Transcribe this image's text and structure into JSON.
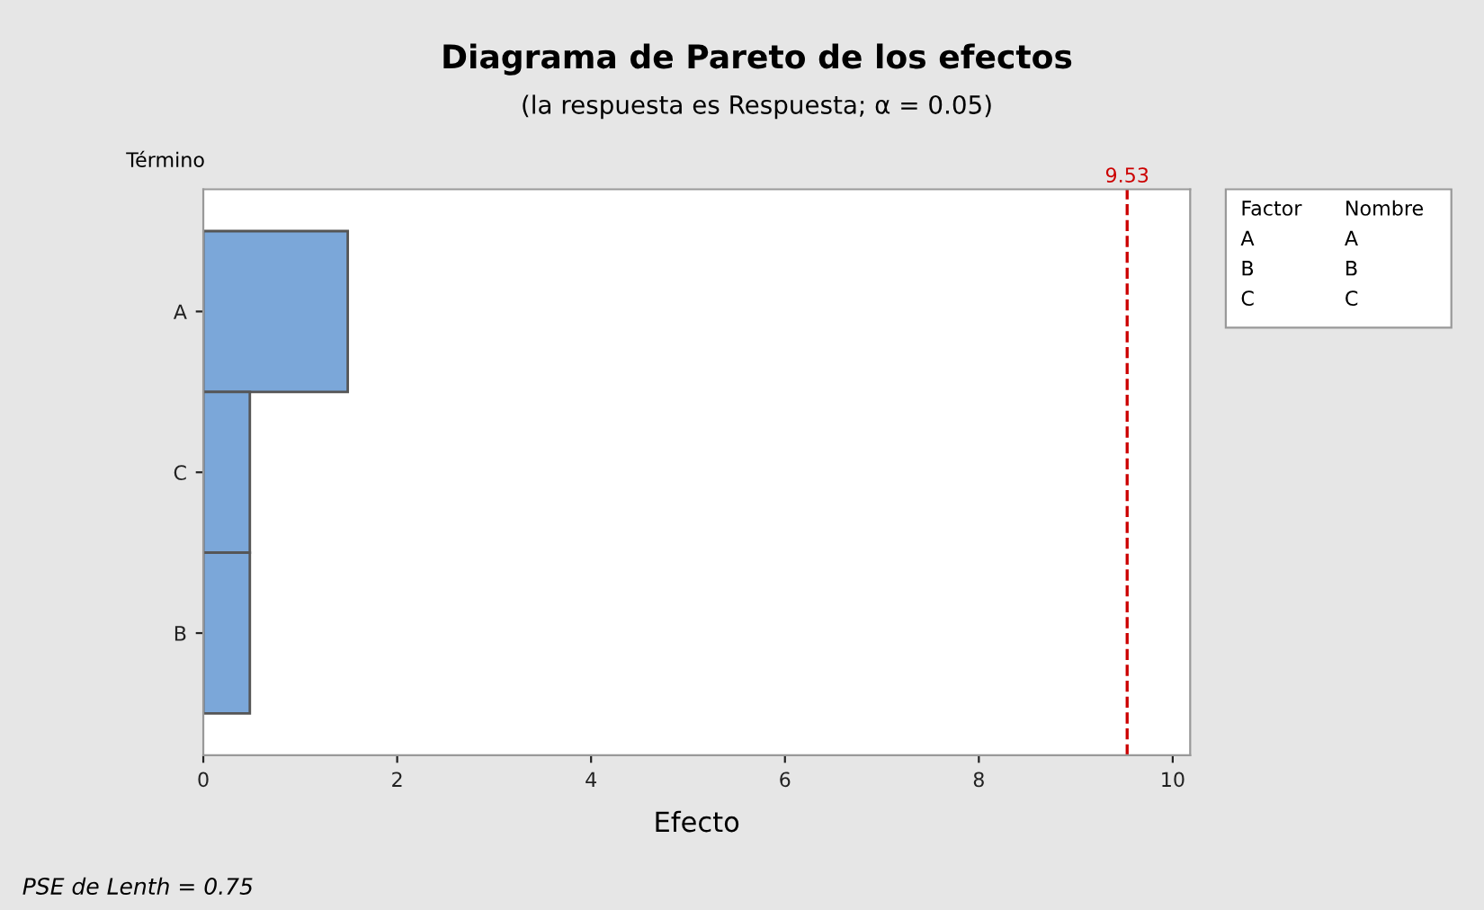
{
  "chart_data": {
    "type": "bar",
    "orientation": "horizontal",
    "title": "Diagrama de Pareto de los efectos",
    "subtitle": "(la respuesta es Respuesta; α = 0.05)",
    "xlabel": "Efecto",
    "ylabel": "Término",
    "categories": [
      "A",
      "C",
      "B"
    ],
    "values": [
      1.49,
      0.48,
      0.48
    ],
    "color": "#7ba7d9",
    "xlim": [
      0,
      10.18
    ],
    "xticks": [
      0,
      2,
      4,
      6,
      8,
      10
    ],
    "grid": false,
    "ref_lines": [
      {
        "axis": "x",
        "value": 9.53,
        "label": "9.53",
        "color": "#cc0000",
        "line_style": "dashed"
      }
    ],
    "annotations": [
      "PSE de Lenth = 0.75",
      "Factor",
      "Nombre",
      "A",
      "A",
      "B",
      "B",
      "C",
      "C"
    ]
  }
}
